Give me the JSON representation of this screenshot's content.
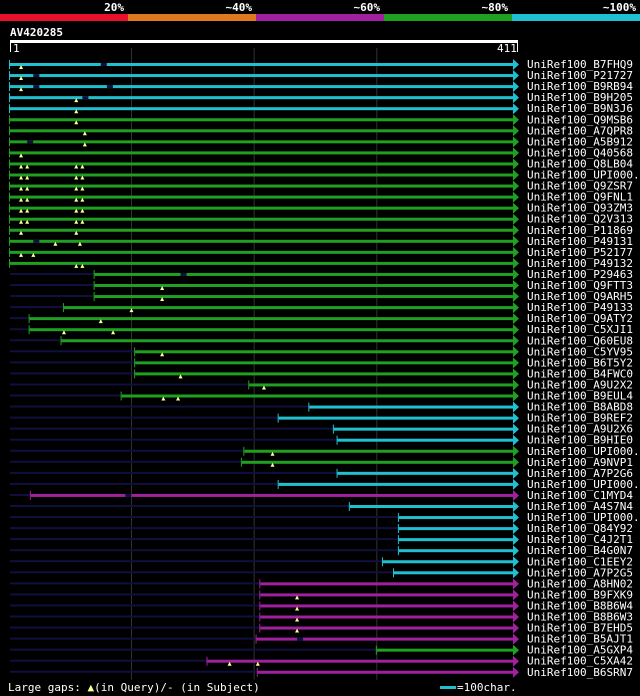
{
  "chart_data": {
    "type": "alignment-overview",
    "title": "AV420285",
    "query_length": 411,
    "axis": {
      "start_label": "1",
      "end_label": "411",
      "range": [
        1,
        411
      ]
    },
    "legend_scale": [
      {
        "label": "20%",
        "color": "#e8102a"
      },
      {
        "label": "~40%",
        "color": "#e07820"
      },
      {
        "label": "~60%",
        "color": "#a020a0"
      },
      {
        "label": "~80%",
        "color": "#20a020"
      },
      {
        "label": "~100%",
        "color": "#20c0d0"
      }
    ],
    "colors": {
      "cyan": "#20c0d0",
      "green": "#20a020",
      "purple": "#a020a0",
      "orange": "#e07820",
      "red": "#e8102a",
      "baseline": "#101040",
      "gridline": "#333333",
      "gap_marker": "#ffff99"
    },
    "hits": [
      {
        "label": "UniRef100_B7FHQ9",
        "start": 1,
        "end": 411,
        "color": "cyan",
        "gaps_q": [
          10
        ],
        "gaps_s": [
          75
        ]
      },
      {
        "label": "UniRef100_P21727",
        "start": 1,
        "end": 411,
        "color": "cyan",
        "gaps_q": [
          10
        ],
        "gaps_s": [
          20
        ]
      },
      {
        "label": "UniRef100_B9RB94",
        "start": 1,
        "end": 411,
        "color": "cyan",
        "gaps_q": [
          10
        ],
        "gaps_s": [
          20,
          80
        ]
      },
      {
        "label": "UniRef100_B9H205",
        "start": 1,
        "end": 411,
        "color": "cyan",
        "gaps_q": [
          55
        ],
        "gaps_s": [
          60
        ]
      },
      {
        "label": "UniRef100_B9N3J6",
        "start": 1,
        "end": 411,
        "color": "cyan",
        "gaps_q": [
          55
        ],
        "gaps_s": []
      },
      {
        "label": "UniRef100_Q9MSB6",
        "start": 1,
        "end": 411,
        "color": "green",
        "gaps_q": [
          55
        ],
        "gaps_s": []
      },
      {
        "label": "UniRef100_A7QPR8",
        "start": 1,
        "end": 411,
        "color": "green",
        "gaps_q": [
          62
        ],
        "gaps_s": []
      },
      {
        "label": "UniRef100_A5B912",
        "start": 1,
        "end": 411,
        "color": "green",
        "gaps_q": [
          62
        ],
        "gaps_s": [
          15
        ]
      },
      {
        "label": "UniRef100_Q40568",
        "start": 1,
        "end": 411,
        "color": "green",
        "gaps_q": [
          10
        ],
        "gaps_s": []
      },
      {
        "label": "UniRef100_Q8LB04",
        "start": 1,
        "end": 411,
        "color": "green",
        "gaps_q": [
          10,
          15,
          55,
          60
        ],
        "gaps_s": []
      },
      {
        "label": "UniRef100_UPI000..",
        "start": 1,
        "end": 411,
        "color": "green",
        "gaps_q": [
          10,
          15,
          55,
          60
        ],
        "gaps_s": []
      },
      {
        "label": "UniRef100_Q9ZSR7",
        "start": 1,
        "end": 411,
        "color": "green",
        "gaps_q": [
          10,
          15,
          55,
          60
        ],
        "gaps_s": []
      },
      {
        "label": "UniRef100_Q9FNL1",
        "start": 1,
        "end": 411,
        "color": "green",
        "gaps_q": [
          10,
          15,
          55,
          60
        ],
        "gaps_s": []
      },
      {
        "label": "UniRef100_Q93ZM3",
        "start": 1,
        "end": 411,
        "color": "green",
        "gaps_q": [
          10,
          15,
          55,
          60
        ],
        "gaps_s": []
      },
      {
        "label": "UniRef100_Q2V313",
        "start": 1,
        "end": 411,
        "color": "green",
        "gaps_q": [
          10,
          15,
          55,
          60
        ],
        "gaps_s": []
      },
      {
        "label": "UniRef100_P11869",
        "start": 1,
        "end": 411,
        "color": "green",
        "gaps_q": [
          10,
          55
        ],
        "gaps_s": []
      },
      {
        "label": "UniRef100_P49131",
        "start": 1,
        "end": 411,
        "color": "green",
        "gaps_q": [
          38,
          58
        ],
        "gaps_s": [
          20
        ]
      },
      {
        "label": "UniRef100_P52177",
        "start": 1,
        "end": 411,
        "color": "green",
        "gaps_q": [
          10,
          20
        ],
        "gaps_s": []
      },
      {
        "label": "UniRef100_P49132",
        "start": 1,
        "end": 411,
        "color": "green",
        "gaps_q": [
          55,
          60
        ],
        "gaps_s": []
      },
      {
        "label": "UniRef100_P29463",
        "start": 70,
        "end": 411,
        "color": "green",
        "gaps_q": [],
        "gaps_s": [
          140
        ]
      },
      {
        "label": "UniRef100_Q9FTT3",
        "start": 70,
        "end": 411,
        "color": "green",
        "gaps_q": [
          125
        ],
        "gaps_s": []
      },
      {
        "label": "UniRef100_Q9ARH5",
        "start": 70,
        "end": 411,
        "color": "green",
        "gaps_q": [
          125
        ],
        "gaps_s": []
      },
      {
        "label": "UniRef100_P49133",
        "start": 45,
        "end": 411,
        "color": "green",
        "gaps_q": [
          100
        ],
        "gaps_s": []
      },
      {
        "label": "UniRef100_Q9ATY2",
        "start": 17,
        "end": 411,
        "color": "green",
        "gaps_q": [
          75
        ],
        "gaps_s": []
      },
      {
        "label": "UniRef100_C5XJI1",
        "start": 17,
        "end": 411,
        "color": "green",
        "gaps_q": [
          45,
          85
        ],
        "gaps_s": []
      },
      {
        "label": "UniRef100_Q60EU8",
        "start": 43,
        "end": 411,
        "color": "green",
        "gaps_q": [],
        "gaps_s": []
      },
      {
        "label": "UniRef100_C5YV95",
        "start": 103,
        "end": 411,
        "color": "green",
        "gaps_q": [
          125
        ],
        "gaps_s": []
      },
      {
        "label": "UniRef100_B6T5Y2",
        "start": 103,
        "end": 411,
        "color": "green",
        "gaps_q": [],
        "gaps_s": []
      },
      {
        "label": "UniRef100_B4FWC0",
        "start": 103,
        "end": 411,
        "color": "green",
        "gaps_q": [
          140
        ],
        "gaps_s": []
      },
      {
        "label": "UniRef100_A9U2X2",
        "start": 196,
        "end": 411,
        "color": "green",
        "gaps_q": [
          208
        ],
        "gaps_s": []
      },
      {
        "label": "UniRef100_B9EUL4",
        "start": 92,
        "end": 411,
        "color": "green",
        "gaps_q": [
          126,
          138
        ],
        "gaps_s": []
      },
      {
        "label": "UniRef100_B8ABD8",
        "start": 245,
        "end": 411,
        "color": "cyan",
        "gaps_q": [],
        "gaps_s": []
      },
      {
        "label": "UniRef100_B9REF2",
        "start": 220,
        "end": 411,
        "color": "cyan",
        "gaps_q": [],
        "gaps_s": []
      },
      {
        "label": "UniRef100_A9U2X6",
        "start": 265,
        "end": 411,
        "color": "cyan",
        "gaps_q": [],
        "gaps_s": []
      },
      {
        "label": "UniRef100_B9HIE0",
        "start": 268,
        "end": 411,
        "color": "cyan",
        "gaps_q": [],
        "gaps_s": []
      },
      {
        "label": "UniRef100_UPI000..",
        "start": 192,
        "end": 411,
        "color": "green",
        "gaps_q": [
          215
        ],
        "gaps_s": []
      },
      {
        "label": "UniRef100_A9NVP1",
        "start": 190,
        "end": 411,
        "color": "green",
        "gaps_q": [
          215
        ],
        "gaps_s": []
      },
      {
        "label": "UniRef100_A7P2G6",
        "start": 268,
        "end": 411,
        "color": "cyan",
        "gaps_q": [],
        "gaps_s": []
      },
      {
        "label": "UniRef100_UPI000..",
        "start": 220,
        "end": 411,
        "color": "cyan",
        "gaps_q": [],
        "gaps_s": []
      },
      {
        "label": "UniRef100_C1MYD4",
        "start": 18,
        "end": 411,
        "color": "purple",
        "gaps_q": [],
        "gaps_s": [
          95
        ]
      },
      {
        "label": "UniRef100_A4S7N4",
        "start": 278,
        "end": 411,
        "color": "cyan",
        "gaps_q": [],
        "gaps_s": []
      },
      {
        "label": "UniRef100_UPI000..",
        "start": 318,
        "end": 411,
        "color": "cyan",
        "gaps_q": [],
        "gaps_s": []
      },
      {
        "label": "UniRef100_Q84Y92",
        "start": 318,
        "end": 411,
        "color": "cyan",
        "gaps_q": [],
        "gaps_s": []
      },
      {
        "label": "UniRef100_C4J2T1",
        "start": 318,
        "end": 411,
        "color": "cyan",
        "gaps_q": [],
        "gaps_s": []
      },
      {
        "label": "UniRef100_B4G0N7",
        "start": 318,
        "end": 411,
        "color": "cyan",
        "gaps_q": [],
        "gaps_s": []
      },
      {
        "label": "UniRef100_C1EEY2",
        "start": 305,
        "end": 411,
        "color": "cyan",
        "gaps_q": [],
        "gaps_s": []
      },
      {
        "label": "UniRef100_A7P2G5",
        "start": 314,
        "end": 411,
        "color": "cyan",
        "gaps_q": [],
        "gaps_s": []
      },
      {
        "label": "UniRef100_A8HN02",
        "start": 205,
        "end": 411,
        "color": "purple",
        "gaps_q": [],
        "gaps_s": []
      },
      {
        "label": "UniRef100_B9FXK9",
        "start": 205,
        "end": 411,
        "color": "purple",
        "gaps_q": [
          235
        ],
        "gaps_s": []
      },
      {
        "label": "UniRef100_B8B6W4",
        "start": 205,
        "end": 411,
        "color": "purple",
        "gaps_q": [
          235
        ],
        "gaps_s": []
      },
      {
        "label": "UniRef100_B8B6W3",
        "start": 205,
        "end": 411,
        "color": "purple",
        "gaps_q": [
          235
        ],
        "gaps_s": []
      },
      {
        "label": "UniRef100_B7EHD5",
        "start": 205,
        "end": 411,
        "color": "purple",
        "gaps_q": [
          235
        ],
        "gaps_s": []
      },
      {
        "label": "UniRef100_B5AJT1",
        "start": 202,
        "end": 411,
        "color": "purple",
        "gaps_q": [],
        "gaps_s": [
          235
        ]
      },
      {
        "label": "UniRef100_A5GXP4",
        "start": 300,
        "end": 411,
        "color": "green",
        "gaps_q": [],
        "gaps_s": []
      },
      {
        "label": "UniRef100_C5XA42",
        "start": 162,
        "end": 411,
        "color": "purple",
        "gaps_q": [
          180,
          203
        ],
        "gaps_s": []
      },
      {
        "label": "UniRef100_B6SRN7",
        "start": 203,
        "end": 411,
        "color": "purple",
        "gaps_q": [],
        "gaps_s": []
      }
    ],
    "footer": {
      "gaps_label": "Large gaps: ",
      "gaps_query_text": "(in Query)/",
      "gaps_subject_marker": "-",
      "gaps_subject_text": " (in Subject)",
      "scale_text": "=100char."
    }
  }
}
